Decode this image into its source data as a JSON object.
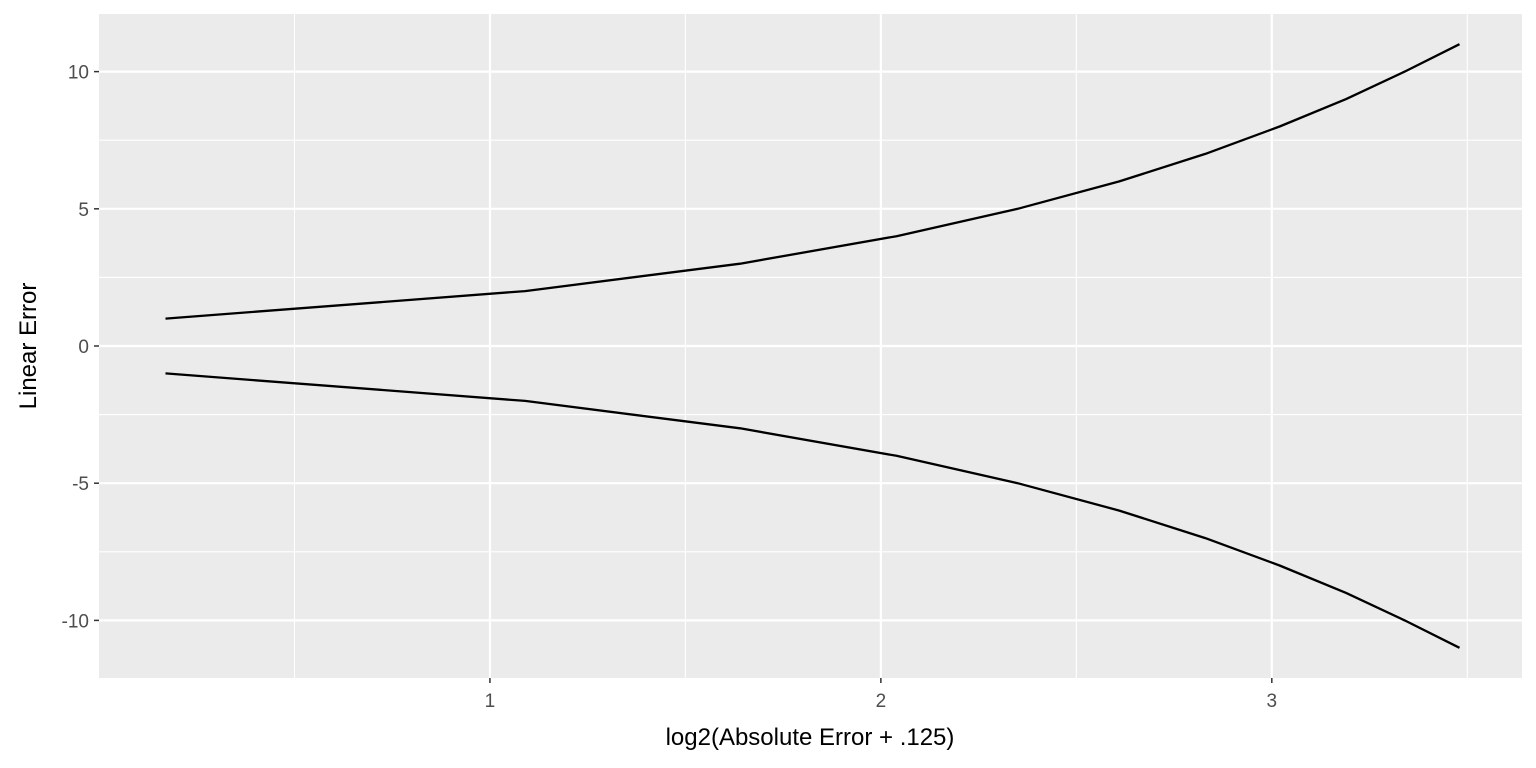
{
  "chart_data": {
    "type": "line",
    "title": "",
    "xlabel": "log2(Absolute Error + .125)",
    "ylabel": "Linear Error",
    "xlim": [
      0.0,
      3.64
    ],
    "ylim": [
      -12.1,
      12.1
    ],
    "x_ticks": [
      1,
      2,
      3
    ],
    "x_minor": [
      0.5,
      1.5,
      2.5,
      3.5
    ],
    "y_ticks": [
      10,
      5,
      0,
      -5,
      -10
    ],
    "y_tick_labels": [
      "10",
      "5",
      "0",
      "-5",
      "-10"
    ],
    "y_minor": [
      7.5,
      2.5,
      -2.5,
      -7.5
    ],
    "grid": true,
    "legend": "none",
    "colors": {
      "panel": "#ebebeb",
      "grid": "#ffffff",
      "line": "#000000",
      "tick_text": "#4d4d4d"
    },
    "series": [
      {
        "x": [
          0.17,
          1.09,
          1.64,
          2.04,
          2.35,
          2.61,
          2.83,
          3.02,
          3.19,
          3.34,
          3.48
        ],
        "values": [
          1,
          2,
          3,
          4,
          5,
          6,
          7,
          8,
          9,
          10,
          11
        ]
      },
      {
        "x": [
          0.17,
          1.09,
          1.64,
          2.04,
          2.35,
          2.61,
          2.83,
          3.02,
          3.19,
          3.34,
          3.48
        ],
        "values": [
          -1,
          -2,
          -3,
          -4,
          -5,
          -6,
          -7,
          -8,
          -9,
          -10,
          -11
        ]
      }
    ]
  }
}
